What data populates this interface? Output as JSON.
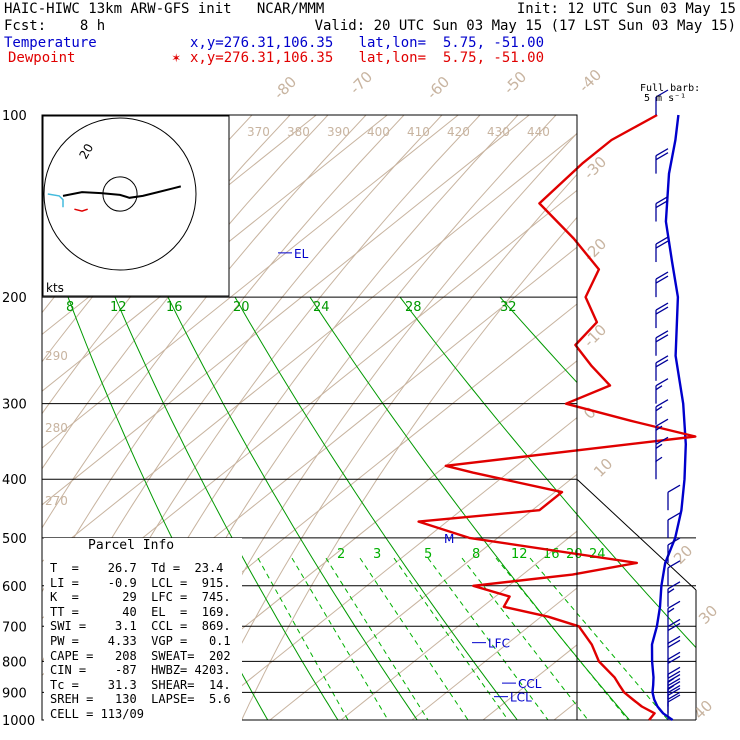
{
  "header": {
    "line1_left": "HAIC-HIWC 13km ARW-GFS init   NCAR/MMM",
    "line1_right": "Init: 12 UTC Sun 03 May 15",
    "line2_left": "Fcst:    8 h",
    "line2_right": "Valid: 20 UTC Sun 03 May 15 (17 LST Sun 03 May 15)",
    "temp_label": "Temperature",
    "temp_coords": "x,y=276.31,106.35   lat,lon=  5.75, -51.00",
    "dew_label": "Dewpoint",
    "dew_marker": "✶",
    "dew_coords": "x,y=276.31,106.35   lat,lon=  5.75, -51.00"
  },
  "barb_legend": {
    "line1": "Full barb:",
    "line2": "5 m s⁻¹"
  },
  "hodograph": {
    "units": "kts",
    "ring_label": "20"
  },
  "colors": {
    "temperature": "#0000cc",
    "dewpoint": "#e00000",
    "isotherm": "#c8b4a0",
    "theta_e": "#c8b4a0",
    "mixing_ratio": "#00b000",
    "dry_adiabat": "#009900",
    "isobar": "#000000",
    "barb": "#000099"
  },
  "chart_data": {
    "type": "line",
    "title": "",
    "ylabel": "",
    "xlabel": "",
    "pressure_levels": [
      100,
      200,
      300,
      400,
      500,
      600,
      700,
      800,
      900,
      1000
    ],
    "pressure_tick_labels": [
      "100",
      "200",
      "300",
      "400",
      "500",
      "600",
      "700",
      "800",
      "900",
      "1000"
    ],
    "isotherm_labels": [
      "-80",
      "-70",
      "-60",
      "-50",
      "-40",
      "-30",
      "-20",
      "-10",
      "0",
      "10",
      "20",
      "30",
      "40"
    ],
    "theta_e_labels": [
      "370",
      "380",
      "390",
      "400",
      "410",
      "420",
      "430",
      "440"
    ],
    "theta_left_labels": [
      "290",
      "280",
      "270"
    ],
    "mixing_ratio_labels_upper": [
      "8",
      "12",
      "16",
      "20",
      "24",
      "28",
      "32"
    ],
    "mixing_ratio_labels_lower": [
      "2",
      "3",
      "5",
      "8",
      "12",
      "16",
      "20",
      "24"
    ],
    "series": [
      {
        "name": "Temperature",
        "p": [
          1000,
          975,
          950,
          925,
          900,
          875,
          850,
          800,
          750,
          700,
          650,
          600,
          550,
          500,
          450,
          400,
          350,
          300,
          250,
          200,
          175,
          150,
          125,
          110,
          100
        ],
        "t": [
          26.7,
          24.2,
          22.2,
          20.5,
          19.0,
          17.8,
          16.5,
          13.5,
          10.5,
          8.0,
          5.0,
          1.5,
          -2.0,
          -5.0,
          -9.0,
          -14.0,
          -20.0,
          -27.5,
          -37.0,
          -47.0,
          -54.0,
          -62.0,
          -70.0,
          -75.0,
          -79.0
        ]
      },
      {
        "name": "Dewpoint",
        "p": [
          1000,
          975,
          950,
          925,
          900,
          875,
          850,
          800,
          750,
          700,
          675,
          650,
          625,
          600,
          575,
          550,
          500,
          470,
          450,
          420,
          390,
          380,
          340,
          320,
          300,
          280,
          260,
          240,
          220,
          200,
          180,
          160,
          140,
          120,
          110,
          100
        ],
        "t": [
          23.4,
          23.0,
          20.0,
          17.5,
          15.0,
          13.0,
          11.0,
          6.0,
          2.0,
          -3.0,
          -9.0,
          -17.0,
          -18.0,
          -25.0,
          -13.0,
          -6.0,
          -34.0,
          -44.0,
          -29.0,
          -29.0,
          -45.0,
          -50.0,
          -20.0,
          -32.0,
          -44.0,
          -41.0,
          -47.0,
          -53.0,
          -54.0,
          -60.0,
          -63.0,
          -72.0,
          -83.0,
          -84.0,
          -84.0,
          -82.0
        ]
      }
    ],
    "parcel_levels": [
      {
        "label": "EL",
        "p": 169
      },
      {
        "label": "LFC",
        "p": 745
      },
      {
        "label": "CCL",
        "p": 869
      },
      {
        "label": "LCL",
        "p": 915
      },
      {
        "label": "M",
        "p": 500
      }
    ],
    "wind_barbs_kts": [
      {
        "p": 100,
        "spd": 8
      },
      {
        "p": 125,
        "spd": 22
      },
      {
        "p": 150,
        "spd": 20
      },
      {
        "p": 175,
        "spd": 20
      },
      {
        "p": 200,
        "spd": 18
      },
      {
        "p": 225,
        "spd": 18
      },
      {
        "p": 250,
        "spd": 20
      },
      {
        "p": 275,
        "spd": 18
      },
      {
        "p": 300,
        "spd": 16
      },
      {
        "p": 325,
        "spd": 16
      },
      {
        "p": 350,
        "spd": 14
      },
      {
        "p": 375,
        "spd": 16
      },
      {
        "p": 400,
        "spd": 6
      },
      {
        "p": 450,
        "spd": 8
      },
      {
        "p": 500,
        "spd": 8
      },
      {
        "p": 550,
        "spd": 10
      },
      {
        "p": 600,
        "spd": 12
      },
      {
        "p": 650,
        "spd": 14
      },
      {
        "p": 700,
        "spd": 16
      },
      {
        "p": 750,
        "spd": 18
      },
      {
        "p": 800,
        "spd": 20
      },
      {
        "p": 850,
        "spd": 22
      },
      {
        "p": 900,
        "spd": 24
      },
      {
        "p": 925,
        "spd": 24
      },
      {
        "p": 950,
        "spd": 22
      },
      {
        "p": 975,
        "spd": 18
      },
      {
        "p": 1000,
        "spd": 12
      }
    ],
    "hodograph_trace": [
      [
        -30,
        -1
      ],
      [
        -20,
        1
      ],
      [
        -10,
        0.5
      ],
      [
        0,
        -0.5
      ],
      [
        5,
        -2
      ],
      [
        12,
        -1
      ],
      [
        20,
        1
      ],
      [
        28,
        3
      ],
      [
        32,
        4
      ]
    ],
    "hodograph_trace_lower": [
      [
        -38,
        0
      ],
      [
        -32,
        -1
      ],
      [
        -30,
        -3
      ],
      [
        -30,
        -7
      ]
    ],
    "hodograph_trace_red": [
      [
        -24,
        -8
      ],
      [
        -20,
        -9
      ],
      [
        -17,
        -8
      ]
    ]
  },
  "parcel_info": {
    "title": "Parcel Info",
    "rows": [
      "T  =    26.7  Td =  23.4",
      "LI =    -0.9  LCL =  915.",
      "K  =      29  LFC =  745.",
      "TT =      40  EL  =  169.",
      "SWI =    3.1  CCL =  869.",
      "PW =    4.33  VGP =   0.1",
      "CAPE =   208  SWEAT=  202",
      "CIN =    -87  HWBZ= 4203.",
      "Tc =    31.3  SHEAR=  14.",
      "SREH =   130  LAPSE=  5.6",
      "CELL = 113/09"
    ]
  }
}
